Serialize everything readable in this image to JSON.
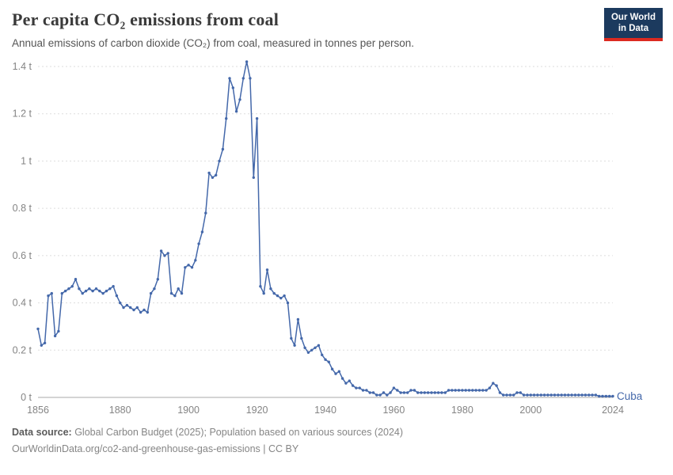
{
  "logo": {
    "line1": "Our World",
    "line2": "in Data"
  },
  "header": {
    "title": "Per capita CO₂ emissions from coal",
    "subtitle": "Annual emissions of carbon dioxide (CO₂) from coal, measured in tonnes per person."
  },
  "footer": {
    "source_label": "Data source:",
    "source_text": " Global Carbon Budget (2025); Population based on various sources (2024)",
    "note_text": "OurWorldinData.org/co2-and-greenhouse-gas-emissions | CC BY"
  },
  "colors": {
    "line": "#4468aa",
    "logo_bg": "#1c3a5e",
    "logo_accent": "#dc2a20",
    "grid": "#dddddd",
    "axis": "#a8a8a8",
    "tick_text": "#848484"
  },
  "chart_data": {
    "type": "line",
    "title": "Per capita CO₂ emissions from coal",
    "series_label": "Cuba",
    "unit": "t",
    "x_start": 1856,
    "x_end": 2024,
    "xticks": [
      1856,
      1880,
      1900,
      1920,
      1940,
      1960,
      1980,
      2000,
      2024
    ],
    "yticks": [
      0,
      0.2,
      0.4,
      0.6,
      0.8,
      1,
      1.2,
      1.4
    ],
    "ytick_labels": [
      "0 t",
      "0.2 t",
      "0.4 t",
      "0.6 t",
      "0.8 t",
      "1 t",
      "1.2 t",
      "1.4 t"
    ],
    "ylim": [
      0,
      1.4
    ],
    "years": [
      1856,
      1857,
      1858,
      1859,
      1860,
      1861,
      1862,
      1863,
      1864,
      1865,
      1866,
      1867,
      1868,
      1869,
      1870,
      1871,
      1872,
      1873,
      1874,
      1875,
      1876,
      1877,
      1878,
      1879,
      1880,
      1881,
      1882,
      1883,
      1884,
      1885,
      1886,
      1887,
      1888,
      1889,
      1890,
      1891,
      1892,
      1893,
      1894,
      1895,
      1896,
      1897,
      1898,
      1899,
      1900,
      1901,
      1902,
      1903,
      1904,
      1905,
      1906,
      1907,
      1908,
      1909,
      1910,
      1911,
      1912,
      1913,
      1914,
      1915,
      1916,
      1917,
      1918,
      1919,
      1920,
      1921,
      1922,
      1923,
      1924,
      1925,
      1926,
      1927,
      1928,
      1929,
      1930,
      1931,
      1932,
      1933,
      1934,
      1935,
      1936,
      1937,
      1938,
      1939,
      1940,
      1941,
      1942,
      1943,
      1944,
      1945,
      1946,
      1947,
      1948,
      1949,
      1950,
      1951,
      1952,
      1953,
      1954,
      1955,
      1956,
      1957,
      1958,
      1959,
      1960,
      1961,
      1962,
      1963,
      1964,
      1965,
      1966,
      1967,
      1968,
      1969,
      1970,
      1971,
      1972,
      1973,
      1974,
      1975,
      1976,
      1977,
      1978,
      1979,
      1980,
      1981,
      1982,
      1983,
      1984,
      1985,
      1986,
      1987,
      1988,
      1989,
      1990,
      1991,
      1992,
      1993,
      1994,
      1995,
      1996,
      1997,
      1998,
      1999,
      2000,
      2001,
      2002,
      2003,
      2004,
      2005,
      2006,
      2007,
      2008,
      2009,
      2010,
      2011,
      2012,
      2013,
      2014,
      2015,
      2016,
      2017,
      2018,
      2019,
      2020,
      2021,
      2022,
      2023,
      2024
    ],
    "values": [
      0.29,
      0.22,
      0.23,
      0.43,
      0.44,
      0.26,
      0.28,
      0.44,
      0.45,
      0.46,
      0.47,
      0.5,
      0.46,
      0.44,
      0.45,
      0.46,
      0.45,
      0.46,
      0.45,
      0.44,
      0.45,
      0.46,
      0.47,
      0.43,
      0.4,
      0.38,
      0.39,
      0.38,
      0.37,
      0.38,
      0.36,
      0.37,
      0.36,
      0.44,
      0.46,
      0.5,
      0.62,
      0.6,
      0.61,
      0.44,
      0.43,
      0.46,
      0.44,
      0.55,
      0.56,
      0.55,
      0.58,
      0.65,
      0.7,
      0.78,
      0.95,
      0.93,
      0.94,
      1.0,
      1.05,
      1.18,
      1.35,
      1.31,
      1.21,
      1.26,
      1.35,
      1.42,
      1.35,
      0.93,
      1.18,
      0.47,
      0.44,
      0.54,
      0.46,
      0.44,
      0.43,
      0.42,
      0.43,
      0.4,
      0.25,
      0.22,
      0.33,
      0.25,
      0.21,
      0.19,
      0.2,
      0.21,
      0.22,
      0.18,
      0.16,
      0.15,
      0.12,
      0.1,
      0.11,
      0.08,
      0.06,
      0.07,
      0.05,
      0.04,
      0.04,
      0.03,
      0.03,
      0.02,
      0.02,
      0.01,
      0.01,
      0.02,
      0.01,
      0.02,
      0.04,
      0.03,
      0.02,
      0.02,
      0.02,
      0.03,
      0.03,
      0.02,
      0.02,
      0.02,
      0.02,
      0.02,
      0.02,
      0.02,
      0.02,
      0.02,
      0.03,
      0.03,
      0.03,
      0.03,
      0.03,
      0.03,
      0.03,
      0.03,
      0.03,
      0.03,
      0.03,
      0.03,
      0.04,
      0.06,
      0.05,
      0.02,
      0.01,
      0.01,
      0.01,
      0.01,
      0.02,
      0.02,
      0.01,
      0.01,
      0.01,
      0.01,
      0.01,
      0.01,
      0.01,
      0.01,
      0.01,
      0.01,
      0.01,
      0.01,
      0.01,
      0.01,
      0.01,
      0.01,
      0.01,
      0.01,
      0.01,
      0.01,
      0.01,
      0.01,
      0.005,
      0.005,
      0.005,
      0.005,
      0.005
    ]
  }
}
